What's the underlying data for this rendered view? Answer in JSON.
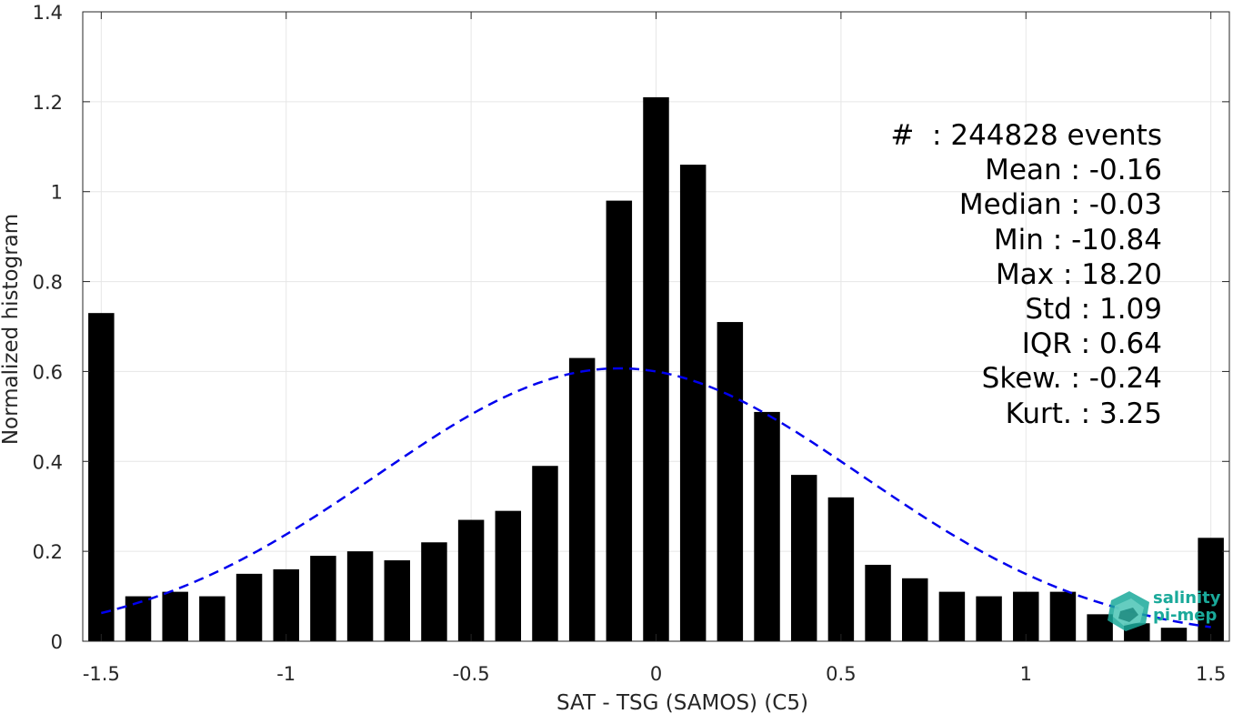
{
  "chart_data": {
    "type": "bar",
    "xlabel": "SAT - TSG (SAMOS) (C5)",
    "ylabel": "Normalized histogram",
    "xlim": [
      -1.55,
      1.55
    ],
    "ylim": [
      0,
      1.4
    ],
    "xticks": [
      -1.5,
      -1,
      -0.5,
      0,
      0.5,
      1,
      1.5
    ],
    "xtick_labels": [
      "-1.5",
      "-1",
      "-0.5",
      "0",
      "0.5",
      "1",
      "1.5"
    ],
    "yticks": [
      0,
      0.2,
      0.4,
      0.6,
      0.8,
      1,
      1.2,
      1.4
    ],
    "ytick_labels": [
      "0",
      "0.2",
      "0.4",
      "0.6",
      "0.8",
      "1",
      "1.2",
      "1.4"
    ],
    "grid": true,
    "bar_width": 0.07,
    "bars_x": [
      -1.5,
      -1.4,
      -1.3,
      -1.2,
      -1.1,
      -1.0,
      -0.9,
      -0.8,
      -0.7,
      -0.6,
      -0.5,
      -0.4,
      -0.3,
      -0.2,
      -0.1,
      0.0,
      0.1,
      0.2,
      0.3,
      0.4,
      0.5,
      0.6,
      0.7,
      0.8,
      0.9,
      1.0,
      1.1,
      1.2,
      1.3,
      1.4,
      1.5
    ],
    "bars_y": [
      0.73,
      0.1,
      0.11,
      0.1,
      0.15,
      0.16,
      0.19,
      0.2,
      0.18,
      0.22,
      0.27,
      0.29,
      0.39,
      0.63,
      0.98,
      1.21,
      1.06,
      0.71,
      0.51,
      0.37,
      0.32,
      0.17,
      0.14,
      0.11,
      0.1,
      0.11,
      0.11,
      0.06,
      0.04,
      0.03,
      0.23
    ],
    "fit_curve": {
      "style": "dashed",
      "color": "#0000ee",
      "mean": -0.1,
      "std": 0.657,
      "peak": 0.607,
      "x_range": [
        -1.5,
        1.5
      ]
    },
    "bar_color": "#000000"
  },
  "stats": [
    "#  : 244828 events",
    "Mean : -0.16",
    "Median : -0.03",
    "Min : -10.84",
    "Max : 18.20",
    "Std : 1.09",
    "IQR : 0.64",
    "Skew. : -0.24",
    "Kurt. : 3.25"
  ],
  "logo": {
    "line1": "salinity",
    "line2": "pi-mep",
    "color": "#1aa99a"
  }
}
